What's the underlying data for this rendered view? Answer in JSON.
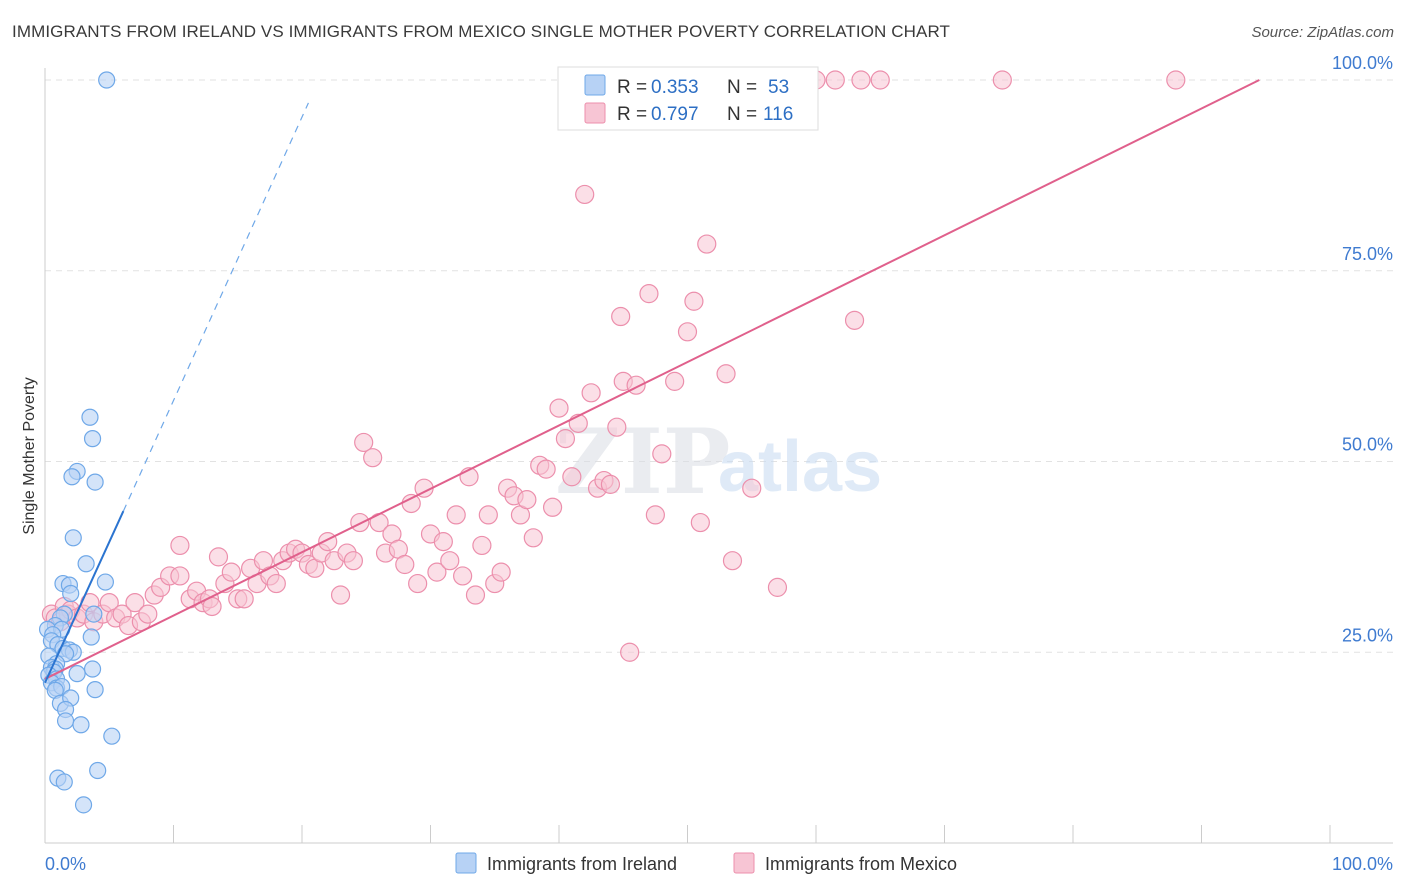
{
  "title": "IMMIGRANTS FROM IRELAND VS IMMIGRANTS FROM MEXICO SINGLE MOTHER POVERTY CORRELATION CHART",
  "source": "Source: ZipAtlas.com",
  "watermark": {
    "zip": "ZIP",
    "atlas": "atlas"
  },
  "chart_data": {
    "type": "scatter",
    "title": "IMMIGRANTS FROM IRELAND VS IMMIGRANTS FROM MEXICO SINGLE MOTHER POVERTY CORRELATION CHART",
    "xlabel": "",
    "ylabel": "Single Mother Poverty",
    "xlim": [
      0,
      100
    ],
    "ylim": [
      0,
      100
    ],
    "x_tick_labels": [
      "0.0%",
      "100.0%"
    ],
    "y_ticks": [
      25,
      50,
      75,
      100
    ],
    "y_tick_labels": [
      "25.0%",
      "50.0%",
      "75.0%",
      "100.0%"
    ],
    "grid": true,
    "legend_position": "bottom",
    "stats": [
      {
        "r_label": "R = ",
        "r_value": "0.353",
        "n_label": "N = ",
        "n_value": "53"
      },
      {
        "r_label": "R = ",
        "r_value": "0.797",
        "n_label": "N = ",
        "n_value": "116"
      }
    ],
    "series": [
      {
        "name": "Immigrants from Ireland",
        "color": "#6fa8e8",
        "fill": "#b7d2f5",
        "line_color": "#2b74d0",
        "trend": {
          "x0": 0,
          "y0": 21,
          "x1": 6.1,
          "y1": 43.5,
          "dashed_to_x": 20.5,
          "dashed_to_y": 97
        },
        "points": [
          [
            4.8,
            100
          ],
          [
            3.5,
            55.8
          ],
          [
            3.7,
            53
          ],
          [
            2.5,
            48.7
          ],
          [
            2.1,
            48
          ],
          [
            3.9,
            47.3
          ],
          [
            2.2,
            40
          ],
          [
            3.2,
            36.6
          ],
          [
            1.4,
            34
          ],
          [
            1.9,
            33.8
          ],
          [
            4.7,
            34.2
          ],
          [
            2.0,
            32.7
          ],
          [
            1.5,
            30
          ],
          [
            3.8,
            30
          ],
          [
            1.2,
            29.5
          ],
          [
            0.8,
            28.5
          ],
          [
            0.2,
            28
          ],
          [
            1.3,
            28
          ],
          [
            0.6,
            27.3
          ],
          [
            3.6,
            27
          ],
          [
            0.5,
            26.5
          ],
          [
            1.0,
            26
          ],
          [
            1.4,
            25.5
          ],
          [
            1.9,
            25.3
          ],
          [
            2.2,
            25
          ],
          [
            1.6,
            24.8
          ],
          [
            0.3,
            24.5
          ],
          [
            0.9,
            23.5
          ],
          [
            0.5,
            23
          ],
          [
            0.8,
            22.8
          ],
          [
            3.7,
            22.8
          ],
          [
            0.7,
            22.4
          ],
          [
            2.5,
            22.2
          ],
          [
            0.3,
            22
          ],
          [
            0.9,
            21.5
          ],
          [
            0.5,
            21
          ],
          [
            0.9,
            20.3
          ],
          [
            1.3,
            20.5
          ],
          [
            3.9,
            20.1
          ],
          [
            0.8,
            20
          ],
          [
            1.2,
            18.3
          ],
          [
            2.0,
            19
          ],
          [
            1.6,
            17.5
          ],
          [
            1.6,
            16
          ],
          [
            2.8,
            15.5
          ],
          [
            5.2,
            14
          ],
          [
            4.1,
            9.5
          ],
          [
            1.0,
            8.5
          ],
          [
            1.5,
            8
          ],
          [
            3.0,
            5
          ]
        ]
      },
      {
        "name": "Immigrants from Mexico",
        "color": "#ec8fac",
        "fill": "#f7c5d4",
        "line_color": "#e0608c",
        "trend": {
          "x0": 0,
          "y0": 21.5,
          "x1": 94.5,
          "y1": 100
        },
        "points": [
          [
            0.5,
            30
          ],
          [
            0.8,
            29.5
          ],
          [
            1.2,
            29
          ],
          [
            1.5,
            31
          ],
          [
            1.8,
            30
          ],
          [
            2.0,
            30.5
          ],
          [
            2.5,
            29.5
          ],
          [
            3.0,
            30
          ],
          [
            3.5,
            31.5
          ],
          [
            3.8,
            29
          ],
          [
            4.5,
            30
          ],
          [
            5.0,
            31.5
          ],
          [
            5.5,
            29.5
          ],
          [
            6.0,
            30
          ],
          [
            6.5,
            28.5
          ],
          [
            7.0,
            31.5
          ],
          [
            7.5,
            29
          ],
          [
            8.0,
            30
          ],
          [
            8.5,
            32.5
          ],
          [
            9.0,
            33.5
          ],
          [
            9.7,
            35
          ],
          [
            10.5,
            35
          ],
          [
            10.5,
            39
          ],
          [
            11.3,
            32
          ],
          [
            11.8,
            33
          ],
          [
            12.3,
            31.5
          ],
          [
            12.8,
            32
          ],
          [
            13.0,
            31
          ],
          [
            13.5,
            37.5
          ],
          [
            14.0,
            34
          ],
          [
            14.5,
            35.5
          ],
          [
            15.0,
            32
          ],
          [
            15.5,
            32
          ],
          [
            16.0,
            36
          ],
          [
            16.5,
            34
          ],
          [
            17.0,
            37
          ],
          [
            17.5,
            35
          ],
          [
            18.0,
            34
          ],
          [
            18.5,
            37
          ],
          [
            19.0,
            38
          ],
          [
            19.5,
            38.5
          ],
          [
            20.0,
            38
          ],
          [
            20.5,
            36.5
          ],
          [
            21.0,
            36
          ],
          [
            21.5,
            38
          ],
          [
            22.0,
            39.5
          ],
          [
            22.5,
            37
          ],
          [
            23.0,
            32.5
          ],
          [
            23.5,
            38
          ],
          [
            24.0,
            37
          ],
          [
            24.5,
            42
          ],
          [
            24.8,
            52.5
          ],
          [
            25.5,
            50.5
          ],
          [
            26.0,
            42
          ],
          [
            26.5,
            38
          ],
          [
            27.0,
            40.5
          ],
          [
            27.5,
            38.5
          ],
          [
            28.0,
            36.5
          ],
          [
            28.5,
            44.5
          ],
          [
            29.0,
            34
          ],
          [
            29.5,
            46.5
          ],
          [
            30.0,
            40.5
          ],
          [
            30.5,
            35.5
          ],
          [
            31.0,
            39.5
          ],
          [
            31.5,
            37
          ],
          [
            32.0,
            43
          ],
          [
            32.5,
            35
          ],
          [
            33.0,
            48
          ],
          [
            33.5,
            32.5
          ],
          [
            34.0,
            39
          ],
          [
            34.5,
            43
          ],
          [
            35.0,
            34
          ],
          [
            35.5,
            35.5
          ],
          [
            36.0,
            46.5
          ],
          [
            36.5,
            45.5
          ],
          [
            37.0,
            43
          ],
          [
            37.5,
            45
          ],
          [
            38.0,
            40
          ],
          [
            38.5,
            49.5
          ],
          [
            39.0,
            49
          ],
          [
            39.5,
            44
          ],
          [
            40.0,
            57
          ],
          [
            40.5,
            53
          ],
          [
            41.0,
            48
          ],
          [
            41.5,
            55
          ],
          [
            42.0,
            85
          ],
          [
            42.5,
            59
          ],
          [
            43.0,
            46.5
          ],
          [
            43.5,
            47.5
          ],
          [
            44.0,
            47
          ],
          [
            44.5,
            54.5
          ],
          [
            44.8,
            69
          ],
          [
            45.0,
            60.5
          ],
          [
            45.5,
            25
          ],
          [
            46.0,
            60
          ],
          [
            47.0,
            72
          ],
          [
            47.5,
            43
          ],
          [
            48.0,
            51
          ],
          [
            49.0,
            60.5
          ],
          [
            50.0,
            67
          ],
          [
            50.5,
            71
          ],
          [
            51.0,
            42
          ],
          [
            51.5,
            78.5
          ],
          [
            53.0,
            61.5
          ],
          [
            53.5,
            37
          ],
          [
            55.0,
            46.5
          ],
          [
            57.0,
            33.5
          ],
          [
            58.5,
            100
          ],
          [
            60.0,
            100
          ],
          [
            61.5,
            100
          ],
          [
            63.0,
            68.5
          ],
          [
            63.5,
            100
          ],
          [
            65.0,
            100
          ],
          [
            74.5,
            100
          ],
          [
            88.0,
            100
          ]
        ]
      }
    ]
  }
}
